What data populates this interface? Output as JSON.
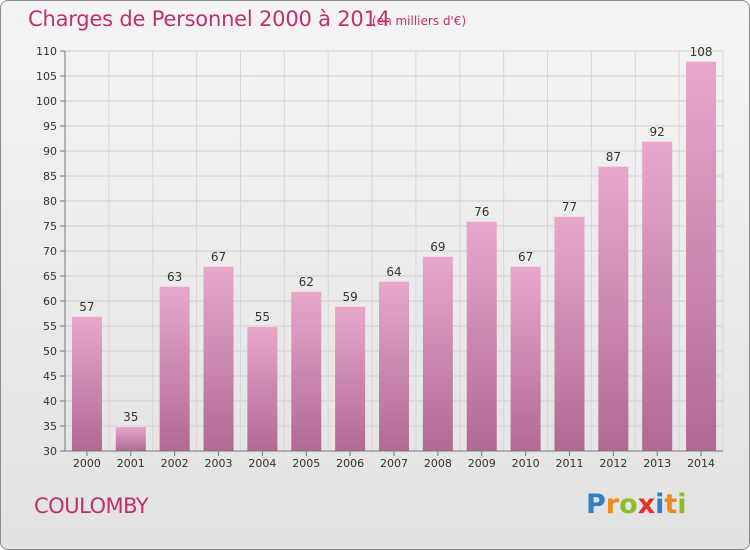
{
  "header": {
    "title": "Charges de Personnel 2000 à 2014",
    "subtitle": "(en milliers d'€)"
  },
  "footer": {
    "commune": "COULOMBY",
    "brand_letters": [
      {
        "char": "P",
        "color": "#2e7fc4"
      },
      {
        "char": "r",
        "color": "#f08a1c"
      },
      {
        "char": "o",
        "color": "#8cbf26"
      },
      {
        "char": "x",
        "color": "#e2312d"
      },
      {
        "char": "i",
        "color": "#2e7fc4"
      },
      {
        "char": "t",
        "color": "#f08a1c"
      },
      {
        "char": "i",
        "color": "#8cbf26"
      }
    ]
  },
  "chart_data": {
    "type": "bar",
    "categories": [
      "2000",
      "2001",
      "2002",
      "2003",
      "2004",
      "2005",
      "2006",
      "2007",
      "2008",
      "2009",
      "2010",
      "2011",
      "2012",
      "2013",
      "2014"
    ],
    "values": [
      57,
      35,
      63,
      67,
      55,
      62,
      59,
      64,
      69,
      76,
      67,
      77,
      87,
      92,
      108
    ],
    "value_labels": [
      "57",
      "35",
      "63",
      "67",
      "55",
      "62",
      "59",
      "64",
      "69",
      "76",
      "67",
      "77",
      "87",
      "92",
      "108"
    ],
    "ylim": [
      30,
      110
    ],
    "yticks": [
      30,
      35,
      40,
      45,
      50,
      55,
      60,
      65,
      70,
      75,
      80,
      85,
      90,
      95,
      100,
      105,
      110
    ],
    "grid": true,
    "bar_color_top": "#e8a8cc",
    "bar_color_bottom": "#b06a92"
  }
}
